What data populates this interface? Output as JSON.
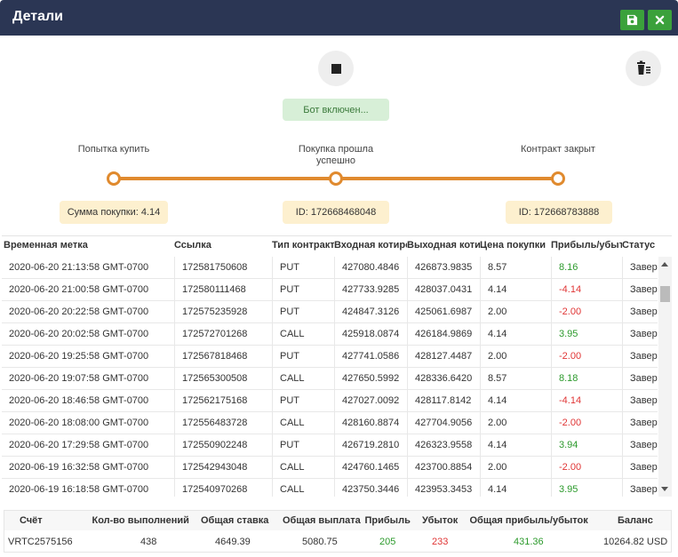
{
  "window": {
    "title": "Детали"
  },
  "bot_status": "Бот включен...",
  "steps": [
    {
      "label": "Попытка купить",
      "info": "Сумма покупки: 4.14"
    },
    {
      "label": "Покупка прошла успешно",
      "info": "ID: 172668468048"
    },
    {
      "label": "Контракт закрыт",
      "info": "ID: 172668783888"
    }
  ],
  "table": {
    "headers": [
      "Временная метка",
      "Ссылка",
      "Тип контракта",
      "Входная котировка",
      "Выходная котировка",
      "Цена покупки",
      "Прибыль/убыток",
      "Статус"
    ],
    "rows": [
      {
        "time": "2020-06-20 21:13:58 GMT-0700",
        "ref": "172581750608",
        "type": "PUT",
        "entry": "427080.4846",
        "exit": "426873.9835",
        "price": "8.57",
        "pl": "8.16",
        "pl_sign": "pos",
        "status": "Завершено"
      },
      {
        "time": "2020-06-20 21:00:58 GMT-0700",
        "ref": "172580111468",
        "type": "PUT",
        "entry": "427733.9285",
        "exit": "428037.0431",
        "price": "4.14",
        "pl": "-4.14",
        "pl_sign": "neg",
        "status": "Завершено"
      },
      {
        "time": "2020-06-20 20:22:58 GMT-0700",
        "ref": "172575235928",
        "type": "PUT",
        "entry": "424847.3126",
        "exit": "425061.6987",
        "price": "2.00",
        "pl": "-2.00",
        "pl_sign": "neg",
        "status": "Завершено"
      },
      {
        "time": "2020-06-20 20:02:58 GMT-0700",
        "ref": "172572701268",
        "type": "CALL",
        "entry": "425918.0874",
        "exit": "426184.9869",
        "price": "4.14",
        "pl": "3.95",
        "pl_sign": "pos",
        "status": "Завершено"
      },
      {
        "time": "2020-06-20 19:25:58 GMT-0700",
        "ref": "172567818468",
        "type": "PUT",
        "entry": "427741.0586",
        "exit": "428127.4487",
        "price": "2.00",
        "pl": "-2.00",
        "pl_sign": "neg",
        "status": "Завершено"
      },
      {
        "time": "2020-06-20 19:07:58 GMT-0700",
        "ref": "172565300508",
        "type": "CALL",
        "entry": "427650.5992",
        "exit": "428336.6420",
        "price": "8.57",
        "pl": "8.18",
        "pl_sign": "pos",
        "status": "Завершено"
      },
      {
        "time": "2020-06-20 18:46:58 GMT-0700",
        "ref": "172562175168",
        "type": "PUT",
        "entry": "427027.0092",
        "exit": "428117.8142",
        "price": "4.14",
        "pl": "-4.14",
        "pl_sign": "neg",
        "status": "Завершено"
      },
      {
        "time": "2020-06-20 18:08:00 GMT-0700",
        "ref": "172556483728",
        "type": "CALL",
        "entry": "428160.8874",
        "exit": "427704.9056",
        "price": "2.00",
        "pl": "-2.00",
        "pl_sign": "neg",
        "status": "Завершено"
      },
      {
        "time": "2020-06-20 17:29:58 GMT-0700",
        "ref": "172550902248",
        "type": "PUT",
        "entry": "426719.2810",
        "exit": "426323.9558",
        "price": "4.14",
        "pl": "3.94",
        "pl_sign": "pos",
        "status": "Завершено"
      },
      {
        "time": "2020-06-19 16:32:58 GMT-0700",
        "ref": "172542943048",
        "type": "CALL",
        "entry": "424760.1465",
        "exit": "423700.8854",
        "price": "2.00",
        "pl": "-2.00",
        "pl_sign": "neg",
        "status": "Завершено"
      },
      {
        "time": "2020-06-19 16:18:58 GMT-0700",
        "ref": "172540970268",
        "type": "CALL",
        "entry": "423750.3446",
        "exit": "423953.3453",
        "price": "4.14",
        "pl": "3.95",
        "pl_sign": "pos",
        "status": "Завершено"
      }
    ]
  },
  "summary": {
    "headers": [
      "Счёт",
      "Кол-во выполнений",
      "Общая ставка",
      "Общая выплата",
      "Прибыль",
      "Убыток",
      "Общая прибыль/убыток",
      "Баланс"
    ],
    "values": [
      "VRTC2575156",
      "438",
      "4649.39",
      "5080.75",
      "205",
      "233",
      "431.36",
      "10264.82 USD"
    ]
  },
  "colors": {
    "titlebar": "#2b3654",
    "accent_green": "#3ba13b",
    "progress": "#e08a2e",
    "profit": "#2c9a2c",
    "loss": "#e03535"
  },
  "icons": {
    "save": "save-icon",
    "close": "close-icon",
    "stop": "stop-icon",
    "clear": "trash-icon"
  }
}
